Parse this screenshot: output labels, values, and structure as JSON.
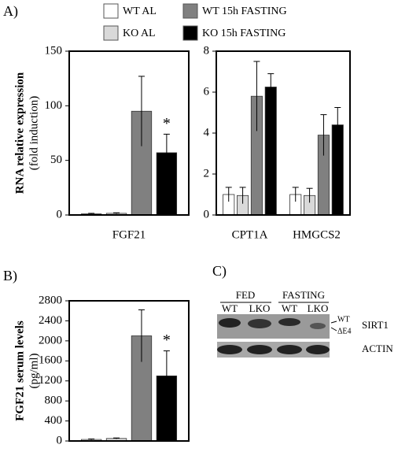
{
  "panel_labels": [
    "A)",
    "B)",
    "C)"
  ],
  "chart_data": [
    {
      "type": "bar",
      "ylabel": [
        "RNA relative expression",
        "(fold induction)"
      ],
      "categories": [
        "FGF21"
      ],
      "ylim": [
        0,
        150
      ],
      "yticks": [
        0,
        50,
        100,
        150
      ],
      "annotation": "*",
      "series": [
        {
          "name": "WT AL",
          "color": "#ffffff",
          "values": [
            1
          ],
          "errors": [
            0.5
          ]
        },
        {
          "name": "KO AL",
          "color": "#d9d9d9",
          "values": [
            1.5
          ],
          "errors": [
            0.5
          ]
        },
        {
          "name": "WT 15h FASTING",
          "color": "#808080",
          "values": [
            95
          ],
          "errors": [
            32
          ]
        },
        {
          "name": "KO 15h FASTING",
          "color": "#000000",
          "values": [
            57
          ],
          "errors": [
            17
          ]
        }
      ]
    },
    {
      "type": "bar",
      "categories": [
        "CPT1A",
        "HMGCS2"
      ],
      "ylim": [
        0,
        8
      ],
      "yticks": [
        0,
        2,
        4,
        6,
        8
      ],
      "series": [
        {
          "name": "WT AL",
          "color": "#ffffff",
          "values": [
            1.0,
            1.0
          ],
          "errors": [
            0.35,
            0.35
          ]
        },
        {
          "name": "KO AL",
          "color": "#d9d9d9",
          "values": [
            0.95,
            0.95
          ],
          "errors": [
            0.4,
            0.35
          ]
        },
        {
          "name": "WT 15h FASTING",
          "color": "#808080",
          "values": [
            5.8,
            3.9
          ],
          "errors": [
            1.7,
            1.0
          ]
        },
        {
          "name": "KO 15h FASTING",
          "color": "#000000",
          "values": [
            6.25,
            4.4
          ],
          "errors": [
            0.65,
            0.85
          ]
        }
      ]
    },
    {
      "type": "bar",
      "ylabel": [
        "FGF21 serum levels",
        "(pg/ml)"
      ],
      "categories": [
        null
      ],
      "ylim": [
        0,
        2800
      ],
      "yticks": [
        0,
        400,
        800,
        1200,
        1600,
        2000,
        2400,
        2800
      ],
      "annotation": "*",
      "series": [
        {
          "name": "WT AL",
          "color": "#ffffff",
          "values": [
            30
          ],
          "errors": [
            10
          ]
        },
        {
          "name": "KO AL",
          "color": "#d9d9d9",
          "values": [
            50
          ],
          "errors": [
            10
          ]
        },
        {
          "name": "WT 15h FASTING",
          "color": "#808080",
          "values": [
            2100
          ],
          "errors": [
            520
          ]
        },
        {
          "name": "KO 15h FASTING",
          "color": "#000000",
          "values": [
            1300
          ],
          "errors": [
            500
          ]
        }
      ]
    }
  ],
  "blot": {
    "groups": [
      "FED",
      "FASTING"
    ],
    "lanes": [
      "WT",
      "LKO",
      "WT",
      "LKO"
    ],
    "isoforms": [
      "WT",
      "ΔE4"
    ],
    "proteins": [
      "SIRT1",
      "ACTIN"
    ]
  }
}
